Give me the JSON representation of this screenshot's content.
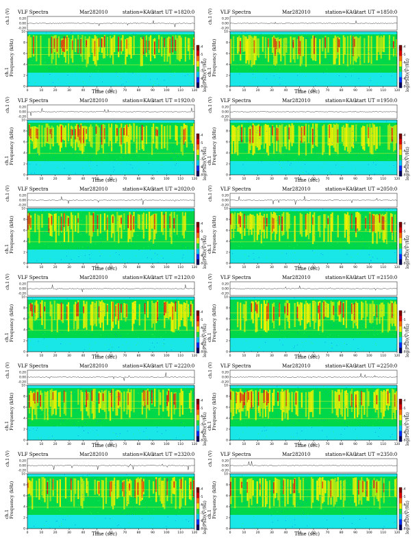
{
  "panels": [
    {
      "title": "VLF Spectra",
      "date": "Mar282010",
      "station": "station=KAG",
      "ut": "start UT =1820:0"
    },
    {
      "title": "VLF Spectra",
      "date": "Mar282010",
      "station": "station=KAG",
      "ut": "start UT =1850:0"
    },
    {
      "title": "VLF Spectra",
      "date": "Mar282010",
      "station": "station=KAG",
      "ut": "start UT =1920:0"
    },
    {
      "title": "VLF Spectra",
      "date": "Mar282010",
      "station": "station=KAG",
      "ut": "start UT =1950:0"
    },
    {
      "title": "VLF Spectra",
      "date": "Mar282010",
      "station": "station=KAG",
      "ut": "start UT =2020:0"
    },
    {
      "title": "VLF Spectra",
      "date": "Mar282010",
      "station": "station=KAG",
      "ut": "start UT =2050:0"
    },
    {
      "title": "VLF Spectra",
      "date": "Mar282010",
      "station": "station=KAG",
      "ut": "start UT =2120:0"
    },
    {
      "title": "VLF Spectra",
      "date": "Mar282010",
      "station": "station=KAG",
      "ut": "start UT =2150:0"
    },
    {
      "title": "VLF Spectra",
      "date": "Mar282010",
      "station": "station=KAG",
      "ut": "start UT =2220:0"
    },
    {
      "title": "VLF Spectra",
      "date": "Mar282010",
      "station": "station=KAG",
      "ut": "start UT =2250:0"
    },
    {
      "title": "VLF Spectra",
      "date": "Mar282010",
      "station": "station=KAG",
      "ut": "start UT =2320:0"
    },
    {
      "title": "VLF Spectra",
      "date": "Mar282010",
      "station": "station=KAG",
      "ut": "start UT =2350:0"
    }
  ],
  "labels": {
    "waveform_ylabel": "ch.1 (V)",
    "spectrogram_ylabel_1": "ch.1",
    "spectrogram_ylabel_2": "Frequency (kHz)",
    "xlabel": "Time (sec)",
    "colorbar_label": "log(PSD)(V²/Hz)"
  },
  "colors": {
    "background_noise": "#19e6e6",
    "mid_band": "#00d84a",
    "emission": "#f0f000",
    "strong": "#e01010",
    "colormap": [
      "#000060",
      "#0030ff",
      "#00c8ff",
      "#20e040",
      "#f0f000",
      "#ff7000",
      "#e00000",
      "#800000"
    ]
  },
  "chart_data": {
    "type": "heatmap",
    "layout": "6 rows x 2 columns of spectrogram panels",
    "x": {
      "label": "Time (sec)",
      "range": [
        0,
        120
      ],
      "ticks": [
        0,
        10,
        20,
        30,
        40,
        50,
        60,
        70,
        80,
        90,
        100,
        110,
        120
      ]
    },
    "y": {
      "label": "Frequency (kHz)",
      "range": [
        0,
        10
      ],
      "ticks": [
        0,
        2,
        4,
        6,
        8,
        10
      ]
    },
    "waveform": {
      "label": "ch.1 (V)",
      "ticks": [
        "0.20",
        "0.00",
        "-0.20"
      ]
    },
    "colorbar": {
      "label": "log(PSD)(V²/Hz)",
      "ticks": [
        "-4",
        "-5",
        "-6",
        "-7",
        "-8",
        "-9"
      ]
    }
  }
}
